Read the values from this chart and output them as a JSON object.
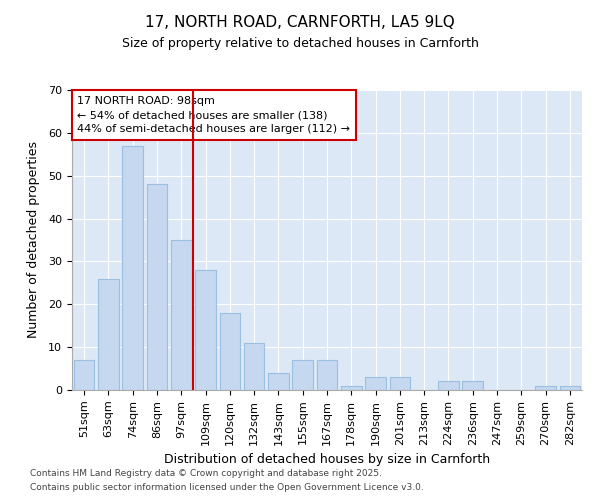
{
  "title": "17, NORTH ROAD, CARNFORTH, LA5 9LQ",
  "subtitle": "Size of property relative to detached houses in Carnforth",
  "xlabel": "Distribution of detached houses by size in Carnforth",
  "ylabel": "Number of detached properties",
  "categories": [
    "51sqm",
    "63sqm",
    "74sqm",
    "86sqm",
    "97sqm",
    "109sqm",
    "120sqm",
    "132sqm",
    "143sqm",
    "155sqm",
    "167sqm",
    "178sqm",
    "190sqm",
    "201sqm",
    "213sqm",
    "224sqm",
    "236sqm",
    "247sqm",
    "259sqm",
    "270sqm",
    "282sqm"
  ],
  "values": [
    7,
    26,
    57,
    48,
    35,
    28,
    18,
    11,
    4,
    7,
    7,
    1,
    3,
    3,
    0,
    2,
    2,
    0,
    0,
    1,
    1
  ],
  "bar_color": "#c5d8f0",
  "bar_edge_color": "#9bbfe0",
  "vline_x_index": 4.5,
  "vline_color": "#cc0000",
  "annotation_text": "17 NORTH ROAD: 98sqm\n← 54% of detached houses are smaller (138)\n44% of semi-detached houses are larger (112) →",
  "annotation_box_color": "#ffffff",
  "annotation_edge_color": "#cc0000",
  "ylim": [
    0,
    70
  ],
  "yticks": [
    0,
    10,
    20,
    30,
    40,
    50,
    60,
    70
  ],
  "bg_color": "#dce8f5",
  "grid_color": "#ffffff",
  "footnote1": "Contains HM Land Registry data © Crown copyright and database right 2025.",
  "footnote2": "Contains public sector information licensed under the Open Government Licence v3.0.",
  "title_fontsize": 11,
  "subtitle_fontsize": 9,
  "axis_label_fontsize": 9,
  "tick_fontsize": 8,
  "annot_fontsize": 8
}
